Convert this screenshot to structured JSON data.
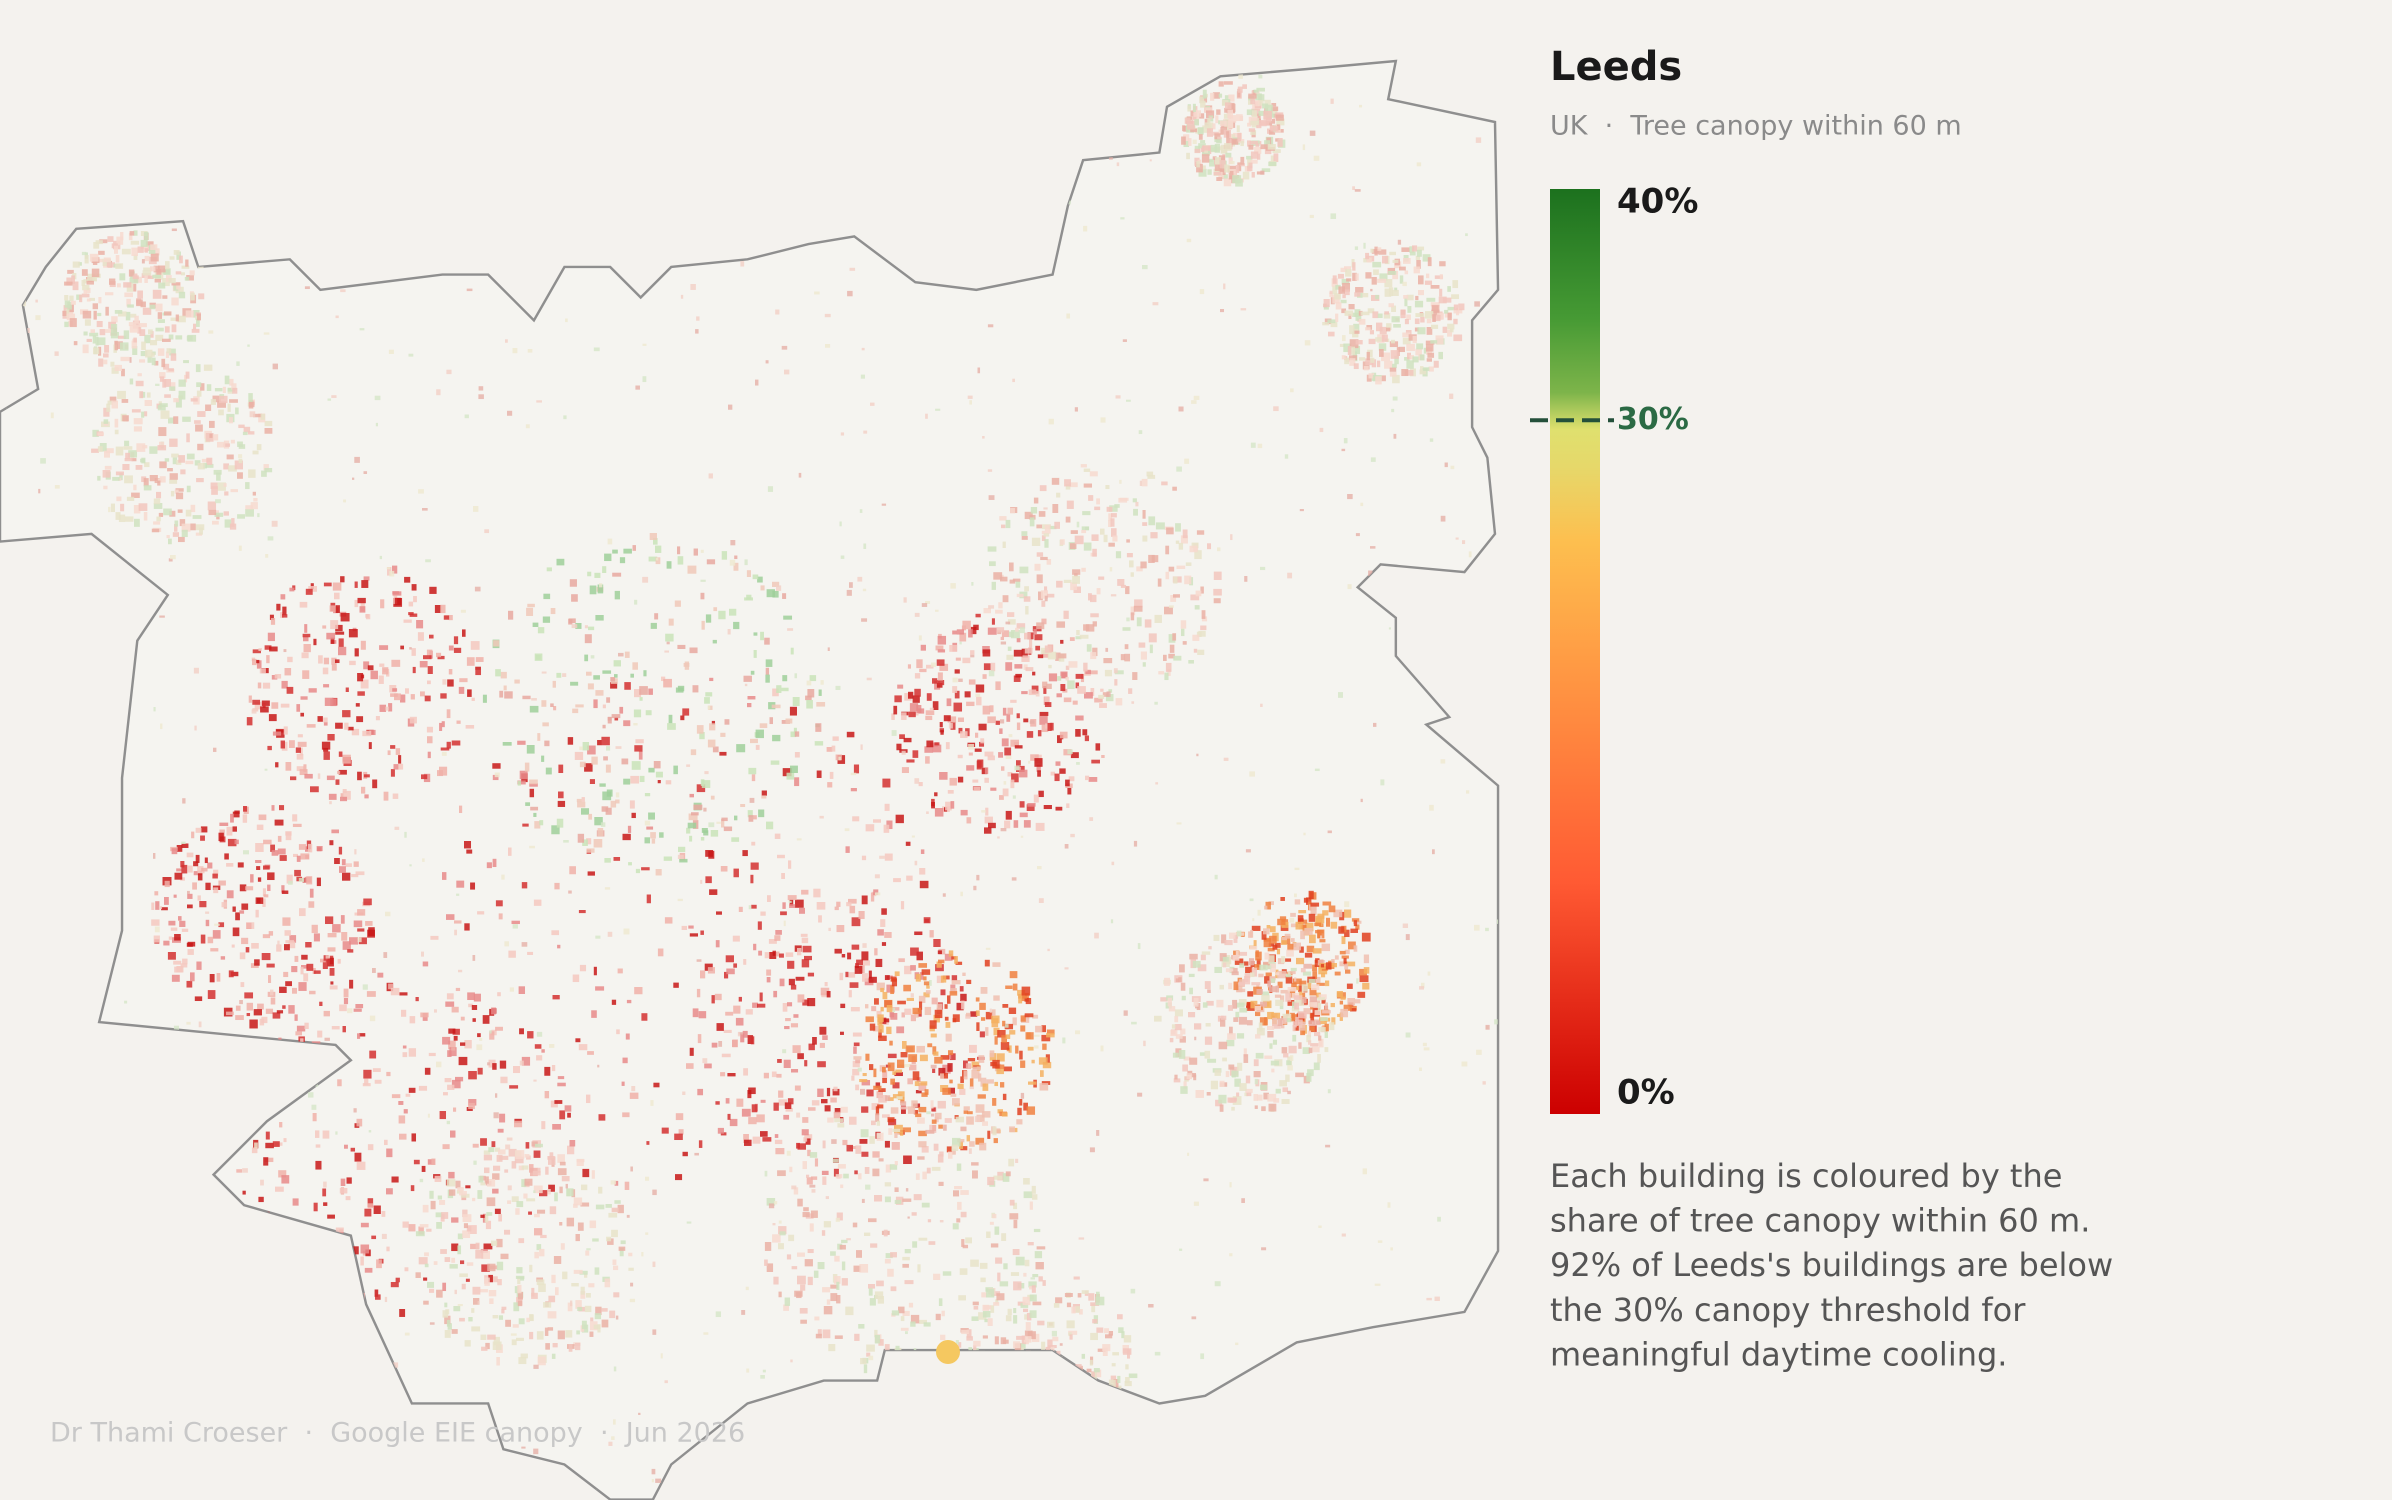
{
  "header": {
    "title": "Leeds",
    "subtitle": "UK  ·  Tree canopy within 60 m"
  },
  "legend": {
    "ticks": [
      {
        "value": 40,
        "label": "40%"
      },
      {
        "value": 0,
        "label": "0%"
      }
    ],
    "threshold": {
      "value": 30,
      "label": "30%"
    }
  },
  "description": [
    "Each building is coloured by the",
    "share of tree canopy within 60 m.",
    "92% of Leeds's buildings are below",
    "the 30% canopy threshold for",
    "meaningful daytime cooling."
  ],
  "footer": "Dr Thami Croeser  ·  Google EIE canopy  ·  Jun 2026"
}
